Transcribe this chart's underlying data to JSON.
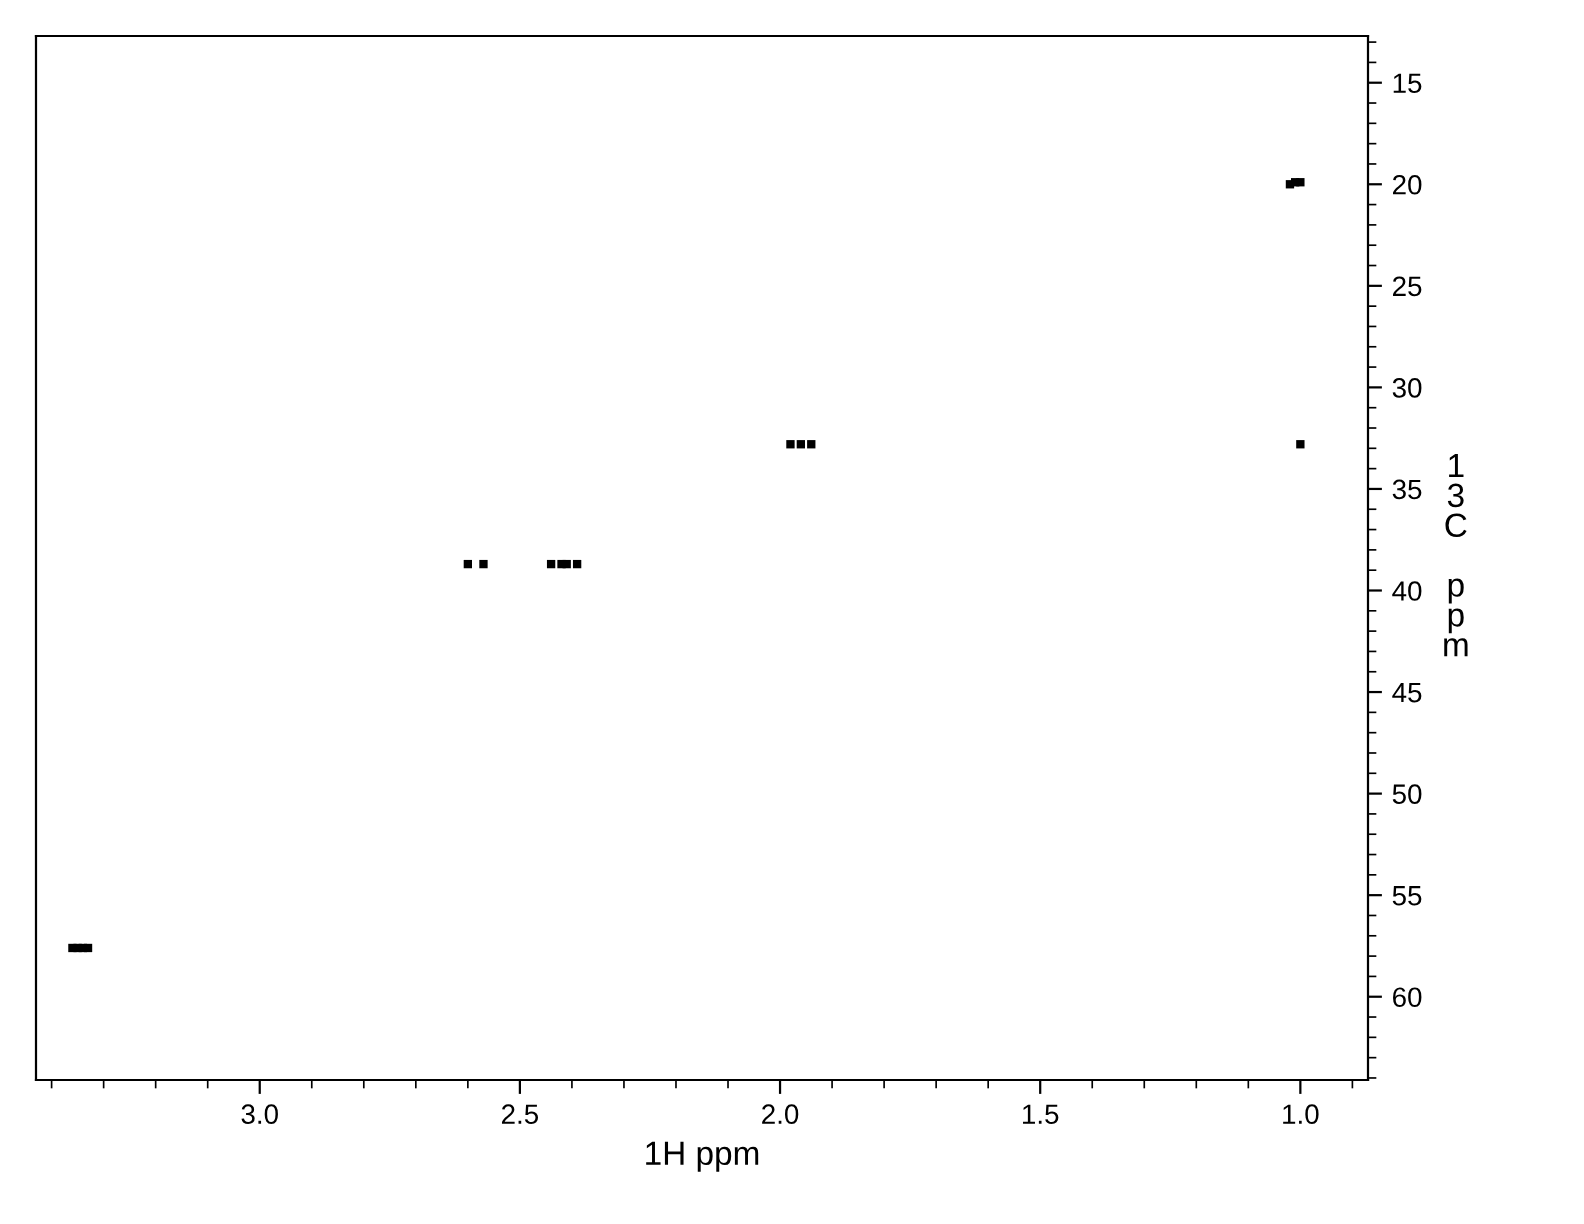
{
  "chart_data": {
    "type": "scatter",
    "xlabel": "1H ppm",
    "ylabel": "13C ppm",
    "marker": "square",
    "grid": false,
    "series": [
      {
        "color": "#000000",
        "x": [
          3.36,
          3.35,
          3.34,
          3.33,
          2.6,
          2.57,
          2.44,
          2.42,
          2.41,
          2.39,
          1.98,
          1.96,
          1.94,
          1.02,
          1.01,
          1.0,
          1.0
        ],
        "values": [
          57.6,
          57.6,
          57.6,
          57.6,
          38.7,
          38.7,
          38.7,
          38.7,
          38.7,
          38.7,
          32.8,
          32.8,
          32.8,
          20.0,
          19.9,
          19.9,
          32.8
        ]
      }
    ],
    "xlim": [
      3.43,
      0.87
    ],
    "ylim": [
      64.1,
      12.7
    ],
    "xticks": [
      {
        "value": 3,
        "label": "3.0"
      },
      2.5,
      {
        "value": 2,
        "label": "2.0"
      },
      1.5,
      {
        "value": 1,
        "label": "1.0"
      },
      {
        "value": 3.4,
        "label": null
      },
      {
        "value": 3.3,
        "label": null
      },
      {
        "value": 3.2,
        "label": null
      },
      {
        "value": 3.1,
        "label": null
      },
      {
        "value": 2.9,
        "label": null
      },
      {
        "value": 2.8,
        "label": null
      },
      {
        "value": 2.7,
        "label": null
      },
      {
        "value": 2.6,
        "label": null
      },
      {
        "value": 2.4,
        "label": null
      },
      {
        "value": 2.3,
        "label": null
      },
      {
        "value": 2.2,
        "label": null
      },
      {
        "value": 2.1,
        "label": null
      },
      {
        "value": 1.9,
        "label": null
      },
      {
        "value": 1.8,
        "label": null
      },
      {
        "value": 1.7,
        "label": null
      },
      {
        "value": 1.6,
        "label": null
      },
      {
        "value": 1.4,
        "label": null
      },
      {
        "value": 1.3,
        "label": null
      },
      {
        "value": 1.2,
        "label": null
      },
      {
        "value": 1.1,
        "label": null
      },
      {
        "value": 0.9,
        "label": null
      }
    ],
    "yticks": [
      15,
      20,
      25,
      30,
      35,
      40,
      45,
      50,
      55,
      60
    ]
  }
}
